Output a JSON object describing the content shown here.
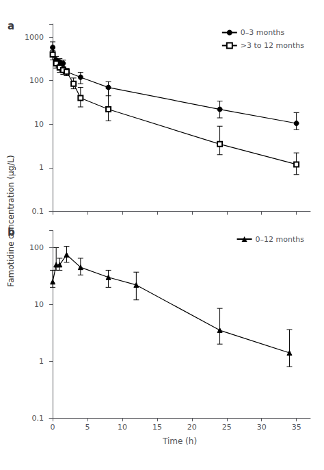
{
  "chart_data": [
    {
      "type": "line",
      "title": "a",
      "ylabel": "Famotidine concentration (µg/L)",
      "log": "y",
      "xlim": [
        -0.5,
        37
      ],
      "xticks": [
        0,
        5,
        10,
        15,
        20,
        25,
        30,
        35
      ],
      "ylim": [
        0.1,
        2000
      ],
      "yticks": [
        0.1,
        1,
        10,
        100,
        1000
      ],
      "tick_labels": "y",
      "grid": false,
      "legend": "upper right",
      "series": [
        {
          "name": "0–3 months",
          "marker": "circle",
          "color": "#000000",
          "x": [
            0.0,
            0.5,
            1.0,
            1.5,
            2.0,
            4.0,
            8.0,
            24.0,
            35.0
          ],
          "values": [
            580,
            300,
            270,
            250,
            160,
            120,
            70,
            22,
            10.5
          ],
          "yerr_lo": [
            150,
            60,
            50,
            45,
            30,
            35,
            25,
            8,
            3
          ],
          "yerr_hi": [
            200,
            60,
            50,
            45,
            30,
            35,
            25,
            12,
            8
          ]
        },
        {
          "name": ">3 to 12 months",
          "marker": "open_square",
          "color": "#000000",
          "x": [
            0.0,
            0.5,
            1.0,
            1.5,
            2.0,
            3.0,
            4.0,
            8.0,
            24.0,
            35.0
          ],
          "values": [
            400,
            250,
            200,
            175,
            160,
            85,
            40,
            22,
            3.5,
            1.2
          ],
          "yerr_lo": [
            100,
            55,
            45,
            35,
            30,
            20,
            15,
            10,
            1.5,
            0.5
          ],
          "yerr_hi": [
            100,
            55,
            45,
            35,
            30,
            30,
            30,
            45,
            5.5,
            1.0
          ]
        }
      ]
    },
    {
      "type": "line",
      "title": "b",
      "xlabel": "Time (h)",
      "log": "y",
      "xlim": [
        -0.5,
        37
      ],
      "xticks": [
        0,
        5,
        10,
        15,
        20,
        25,
        30,
        35
      ],
      "ylim": [
        0.1,
        200
      ],
      "yticks": [
        0.1,
        1,
        10,
        100
      ],
      "grid": false,
      "legend": "upper right",
      "series": [
        {
          "name": "0–12 months",
          "marker": "triangle",
          "color": "#000000",
          "x": [
            0.0,
            0.5,
            1.0,
            2.0,
            4.0,
            8.0,
            12.0,
            24.0,
            34.0
          ],
          "values": [
            25,
            50,
            50,
            75,
            45,
            30,
            22,
            3.5,
            1.4
          ],
          "yerr_lo": [
            5,
            10,
            10,
            20,
            12,
            10,
            10,
            1.5,
            0.6
          ],
          "yerr_hi": [
            15,
            50,
            15,
            30,
            20,
            10,
            15,
            5,
            2.2
          ]
        }
      ]
    }
  ]
}
